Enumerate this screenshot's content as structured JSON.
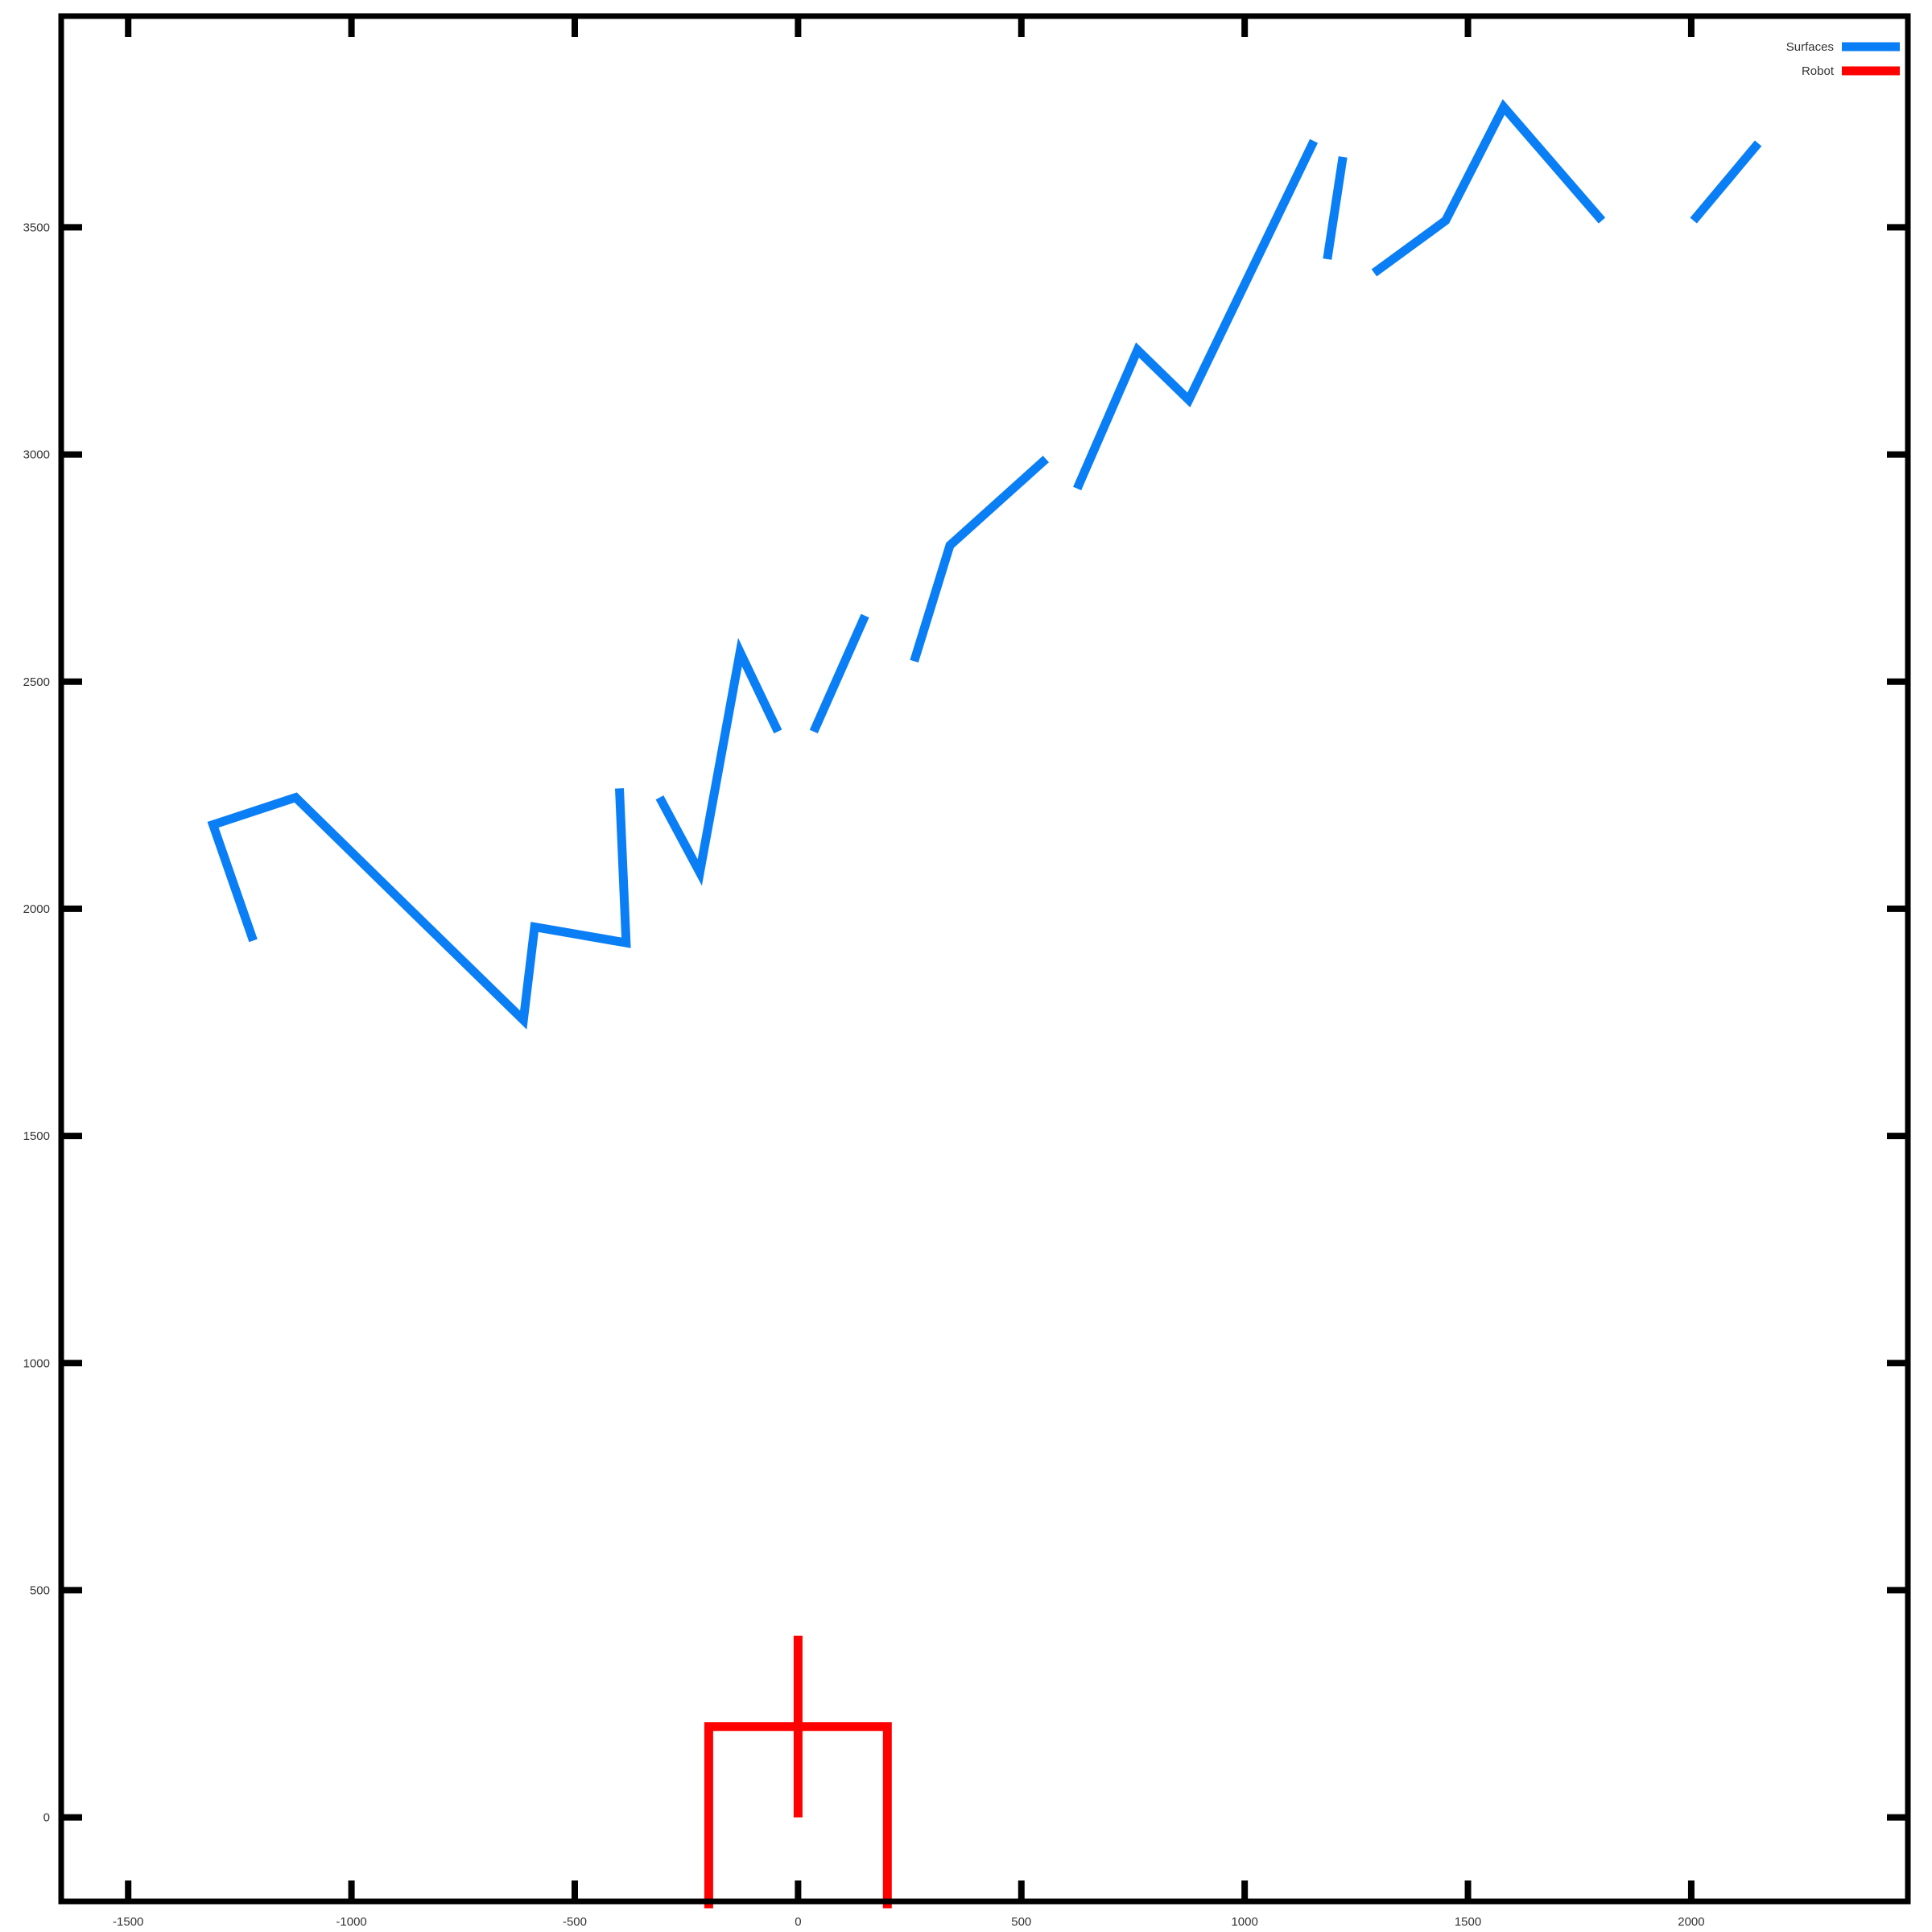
{
  "chart_data": {
    "type": "line",
    "title": "",
    "xlabel": "",
    "ylabel": "",
    "xlim": [
      -1650,
      2485
    ],
    "ylim": [
      -185,
      3965
    ],
    "xticks": [
      -1500,
      -1000,
      -500,
      0,
      500,
      1000,
      1500,
      2000
    ],
    "yticks": [
      0,
      500,
      1000,
      1500,
      2000,
      2500,
      3000,
      3500
    ],
    "grid": false,
    "legend_position": "top-right",
    "series": [
      {
        "name": "Surfaces",
        "color": "#0a7ef5",
        "segments": [
          [
            [
              -1220,
              1930
            ],
            [
              -1310,
              2185
            ],
            [
              -1125,
              2245
            ],
            [
              -860,
              1990
            ],
            [
              -615,
              1755
            ],
            [
              -590,
              1960
            ],
            [
              -385,
              1925
            ],
            [
              -400,
              2265
            ]
          ],
          [
            [
              -310,
              2245
            ],
            [
              -220,
              2080
            ],
            [
              -130,
              2565
            ],
            [
              -45,
              2390
            ]
          ],
          [
            [
              35,
              2390
            ],
            [
              150,
              2645
            ]
          ],
          [
            [
              260,
              2545
            ],
            [
              340,
              2800
            ],
            [
              555,
              2990
            ]
          ],
          [
            [
              625,
              2925
            ],
            [
              760,
              3230
            ],
            [
              875,
              3120
            ],
            [
              1155,
              3690
            ]
          ],
          [
            [
              1185,
              3430
            ],
            [
              1220,
              3655
            ]
          ],
          [
            [
              1290,
              3400
            ],
            [
              1450,
              3515
            ],
            [
              1580,
              3765
            ],
            [
              1800,
              3515
            ]
          ],
          [
            [
              2005,
              3515
            ],
            [
              2150,
              3685
            ]
          ]
        ]
      },
      {
        "name": "Robot",
        "color": "#ff0000",
        "segments": [
          [
            [
              -200,
              -200
            ],
            [
              -200,
              200
            ],
            [
              200,
              200
            ],
            [
              200,
              -200
            ]
          ],
          [
            [
              0,
              0
            ],
            [
              0,
              400
            ]
          ]
        ]
      }
    ]
  }
}
